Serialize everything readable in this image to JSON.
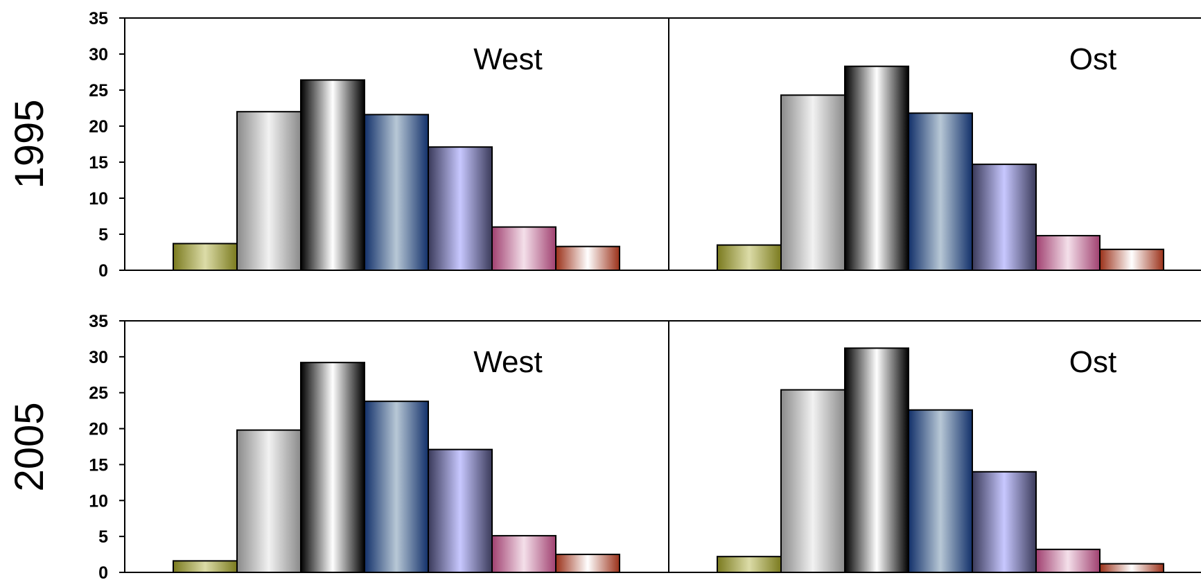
{
  "chart_data": {
    "type": "bar",
    "y_ticks": [
      "0",
      "5",
      "10",
      "15",
      "20",
      "25",
      "30",
      "35"
    ],
    "ylim": [
      0,
      35
    ],
    "grid": false,
    "rows": [
      {
        "label": "1995",
        "panels": [
          {
            "title": "West",
            "values": [
              3.7,
              22.0,
              26.4,
              21.6,
              17.1,
              6.0,
              3.3
            ]
          },
          {
            "title": "Ost",
            "values": [
              3.5,
              24.3,
              28.3,
              21.8,
              14.7,
              4.8,
              2.9
            ]
          }
        ]
      },
      {
        "label": "2005",
        "panels": [
          {
            "title": "West",
            "values": [
              1.6,
              19.8,
              29.2,
              23.8,
              17.1,
              5.1,
              2.5
            ]
          },
          {
            "title": "Ost",
            "values": [
              2.2,
              25.4,
              31.2,
              22.6,
              14.0,
              3.2,
              1.2
            ]
          }
        ]
      }
    ],
    "bar_colors": [
      [
        "#7a7a1e",
        "#dcdca8"
      ],
      [
        "#8a8a8a",
        "#f2f2f2"
      ],
      [
        "#000000",
        "#ffffff"
      ],
      [
        "#12306a",
        "#b8c8d6"
      ],
      [
        "#3a3a5a",
        "#c8c8ff"
      ],
      [
        "#a04070",
        "#f4e0ea"
      ],
      [
        "#9a3018",
        "#ffffff"
      ]
    ]
  }
}
